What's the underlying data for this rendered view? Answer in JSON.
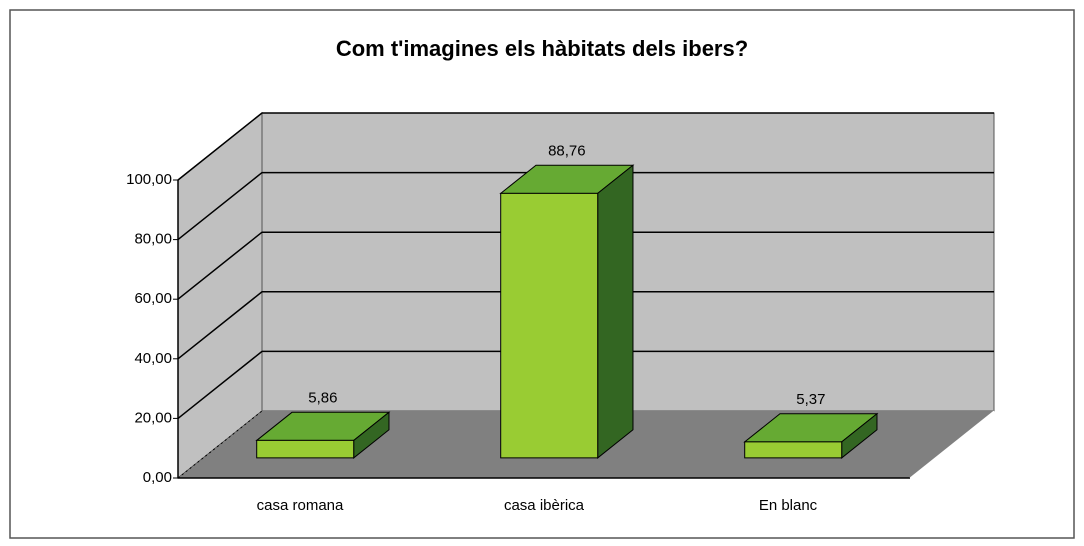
{
  "chart_data": {
    "type": "bar3d",
    "title": "Com t'imagines els hàbitats dels ibers?",
    "categories": [
      "casa romana",
      "casa ibèrica",
      "En blanc"
    ],
    "values": [
      5.86,
      88.76,
      5.37
    ],
    "value_labels": [
      "5,86",
      "88,76",
      "5,37"
    ],
    "color": "#99cc33",
    "ylim": [
      0,
      100
    ],
    "yticks": [
      {
        "value": 0,
        "label": "0,00"
      },
      {
        "value": 20,
        "label": "20,00"
      },
      {
        "value": 40,
        "label": "40,00"
      },
      {
        "value": 60,
        "label": "60,00"
      },
      {
        "value": 80,
        "label": "80,00"
      },
      {
        "value": 100,
        "label": "100,00"
      }
    ],
    "grid": true
  }
}
